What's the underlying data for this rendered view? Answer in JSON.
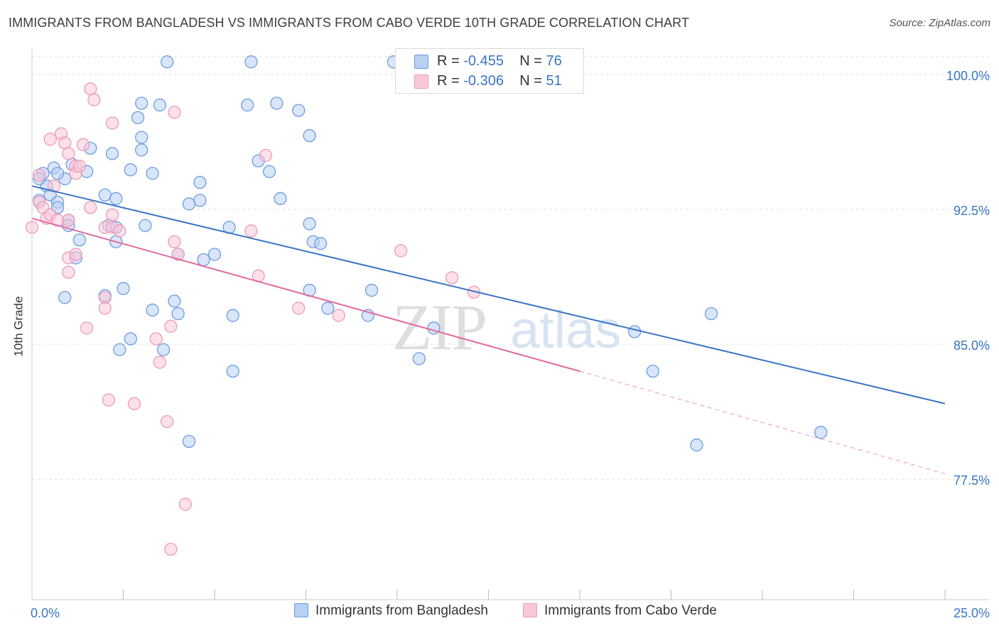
{
  "title": "IMMIGRANTS FROM BANGLADESH VS IMMIGRANTS FROM CABO VERDE 10TH GRADE CORRELATION CHART",
  "source": "Source: ZipAtlas.com",
  "watermark": {
    "zip": "ZIP",
    "atlas": "atlas"
  },
  "colors": {
    "blue": "#3a75c4",
    "blue_fill": "#b9d0f3",
    "blue_stroke": "#6d9de0",
    "pink": "#e06b9a",
    "pink_fill": "#f9c8d8",
    "pink_stroke": "#ee9ab8",
    "axis_text": "#3a75c4",
    "grid": "#e2e2e2"
  },
  "legend_top": [
    {
      "r_label": "R =",
      "r_value": "-0.455",
      "n_label": "N =",
      "n_value": "76"
    },
    {
      "r_label": "R =",
      "r_value": "-0.306",
      "n_label": "N =",
      "n_value": "51"
    }
  ],
  "legend_bottom": [
    "Immigrants from Bangladesh",
    "Immigrants from Cabo Verde"
  ],
  "chart_data": {
    "type": "scatter",
    "xlabel": "",
    "ylabel": "10th Grade",
    "xlim": [
      0,
      25
    ],
    "ylim": [
      70.8,
      101.3
    ],
    "x_tick_labels": [
      {
        "value": 0,
        "label": "0.0%"
      },
      {
        "value": 25,
        "label": "25.0%"
      }
    ],
    "y_tick_labels": [
      {
        "value": 100,
        "label": "100.0%"
      },
      {
        "value": 92.5,
        "label": "92.5%"
      },
      {
        "value": 85,
        "label": "85.0%"
      },
      {
        "value": 77.5,
        "label": "77.5%"
      }
    ],
    "x_minor_ticks": [
      2.5,
      5,
      7.5,
      10,
      12.5,
      15,
      17.5,
      20,
      22.5,
      25
    ],
    "grid": true,
    "series": [
      {
        "name": "Immigrants from Bangladesh",
        "color": "#3a75c4",
        "points": [
          [
            3.7,
            100.7
          ],
          [
            6.0,
            100.7
          ],
          [
            9.9,
            100.7
          ],
          [
            5.9,
            98.3
          ],
          [
            6.7,
            98.4
          ],
          [
            7.3,
            98.0
          ],
          [
            3.0,
            98.4
          ],
          [
            2.9,
            97.6
          ],
          [
            3.5,
            98.3
          ],
          [
            7.6,
            96.6
          ],
          [
            3.0,
            95.8
          ],
          [
            2.2,
            95.6
          ],
          [
            1.6,
            95.9
          ],
          [
            3.0,
            96.5
          ],
          [
            1.1,
            95.0
          ],
          [
            0.6,
            94.8
          ],
          [
            2.7,
            94.7
          ],
          [
            3.3,
            94.5
          ],
          [
            6.2,
            95.2
          ],
          [
            6.5,
            94.6
          ],
          [
            4.6,
            94.0
          ],
          [
            1.5,
            94.6
          ],
          [
            0.3,
            94.5
          ],
          [
            0.9,
            94.2
          ],
          [
            0.4,
            93.8
          ],
          [
            0.7,
            94.5
          ],
          [
            0.2,
            94.2
          ],
          [
            0.5,
            93.3
          ],
          [
            0.2,
            93.0
          ],
          [
            0.7,
            92.9
          ],
          [
            2.0,
            93.3
          ],
          [
            2.3,
            93.1
          ],
          [
            4.3,
            92.8
          ],
          [
            4.6,
            93.0
          ],
          [
            6.8,
            93.1
          ],
          [
            0.7,
            92.6
          ],
          [
            1.0,
            91.9
          ],
          [
            1.0,
            91.6
          ],
          [
            1.3,
            90.8
          ],
          [
            2.1,
            91.6
          ],
          [
            2.3,
            91.5
          ],
          [
            3.1,
            91.6
          ],
          [
            5.4,
            91.5
          ],
          [
            2.3,
            90.7
          ],
          [
            7.6,
            91.7
          ],
          [
            7.7,
            90.7
          ],
          [
            7.9,
            90.6
          ],
          [
            1.2,
            89.8
          ],
          [
            4.0,
            90.0
          ],
          [
            4.7,
            89.7
          ],
          [
            5.0,
            90.0
          ],
          [
            0.9,
            87.6
          ],
          [
            2.0,
            87.7
          ],
          [
            2.5,
            88.1
          ],
          [
            3.3,
            86.9
          ],
          [
            3.9,
            87.4
          ],
          [
            4.0,
            86.7
          ],
          [
            3.6,
            84.7
          ],
          [
            2.4,
            84.7
          ],
          [
            2.7,
            85.3
          ],
          [
            5.5,
            86.6
          ],
          [
            7.6,
            88.0
          ],
          [
            8.1,
            87.0
          ],
          [
            9.3,
            88.0
          ],
          [
            9.2,
            86.6
          ],
          [
            5.5,
            83.5
          ],
          [
            10.6,
            84.2
          ],
          [
            11.0,
            85.9
          ],
          [
            4.3,
            79.6
          ],
          [
            16.5,
            85.7
          ],
          [
            18.6,
            86.7
          ],
          [
            17.0,
            83.5
          ],
          [
            21.6,
            80.1
          ],
          [
            18.2,
            79.4
          ]
        ],
        "trend": {
          "x0": 0,
          "y0": 93.8,
          "x1": 25,
          "y1": 81.7
        }
      },
      {
        "name": "Immigrants from Cabo Verde",
        "color": "#e06b9a",
        "points": [
          [
            0.0,
            91.5
          ],
          [
            0.2,
            92.9
          ],
          [
            0.3,
            92.6
          ],
          [
            0.4,
            92.0
          ],
          [
            0.5,
            92.2
          ],
          [
            0.7,
            91.9
          ],
          [
            1.0,
            91.9
          ],
          [
            0.2,
            94.4
          ],
          [
            0.6,
            93.8
          ],
          [
            1.6,
            99.2
          ],
          [
            1.7,
            98.6
          ],
          [
            2.2,
            97.3
          ],
          [
            0.5,
            96.4
          ],
          [
            0.8,
            96.7
          ],
          [
            0.9,
            96.2
          ],
          [
            1.4,
            96.1
          ],
          [
            1.0,
            95.6
          ],
          [
            1.2,
            94.9
          ],
          [
            1.2,
            94.5
          ],
          [
            1.3,
            94.9
          ],
          [
            1.6,
            92.6
          ],
          [
            2.0,
            91.5
          ],
          [
            2.2,
            91.5
          ],
          [
            2.4,
            91.3
          ],
          [
            3.9,
            97.9
          ],
          [
            6.4,
            95.5
          ],
          [
            2.2,
            92.2
          ],
          [
            1.0,
            89.8
          ],
          [
            1.0,
            89.0
          ],
          [
            1.2,
            90.0
          ],
          [
            2.0,
            87.6
          ],
          [
            2.0,
            87.0
          ],
          [
            1.5,
            85.9
          ],
          [
            3.9,
            90.7
          ],
          [
            4.0,
            90.0
          ],
          [
            3.4,
            85.3
          ],
          [
            3.5,
            84.0
          ],
          [
            3.8,
            86.0
          ],
          [
            2.1,
            81.9
          ],
          [
            2.8,
            81.7
          ],
          [
            3.7,
            80.7
          ],
          [
            4.2,
            76.1
          ],
          [
            3.8,
            73.6
          ],
          [
            6.0,
            91.3
          ],
          [
            6.2,
            88.8
          ],
          [
            7.3,
            87.0
          ],
          [
            8.4,
            86.6
          ],
          [
            10.1,
            90.2
          ],
          [
            11.5,
            88.7
          ],
          [
            12.1,
            87.9
          ]
        ],
        "trend": {
          "x0": 0,
          "y0": 92.0,
          "x1": 15,
          "y1": 83.5
        },
        "trend_dashed": {
          "x0": 15,
          "y0": 83.5,
          "x1": 25,
          "y1": 77.8
        }
      }
    ]
  }
}
